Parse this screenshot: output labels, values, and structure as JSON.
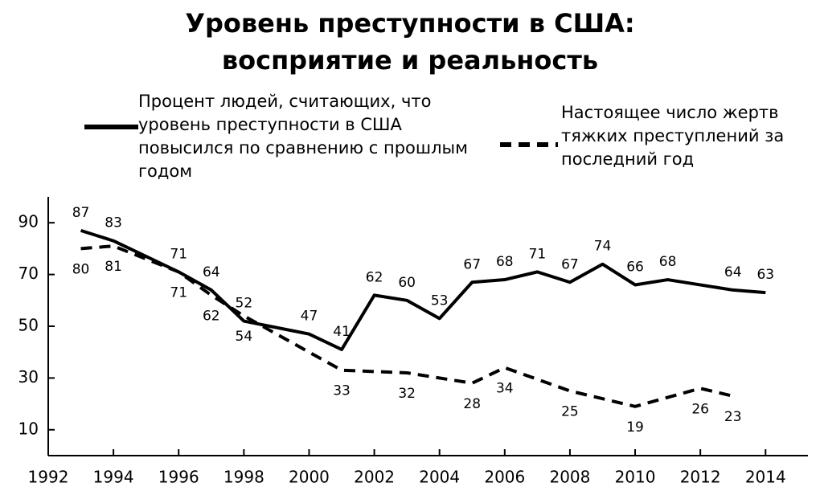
{
  "chart_data": {
    "type": "line",
    "title": "Уровень преступности в США: восприятие и реальность",
    "xlim": [
      1992,
      2015.3
    ],
    "xticks": [
      1992,
      1994,
      1996,
      1998,
      2000,
      2002,
      2004,
      2006,
      2008,
      2010,
      2012,
      2014
    ],
    "ylim": [
      0,
      100
    ],
    "yticks": [
      10,
      30,
      50,
      70,
      90
    ],
    "grid": false,
    "series": [
      {
        "name": "Процент людей, считающих, что уровень преступности в США повысился по сравнению с прошлым годом",
        "color": "#000000",
        "dash": false,
        "x": [
          1993,
          1994,
          1996,
          1997,
          1998,
          2000,
          2001,
          2002,
          2003,
          2004,
          2005,
          2006,
          2007,
          2008,
          2009,
          2010,
          2011,
          2013,
          2014
        ],
        "values": [
          87,
          83,
          71,
          64,
          52,
          47,
          41,
          62,
          60,
          53,
          67,
          68,
          71,
          67,
          74,
          66,
          68,
          64,
          63
        ]
      },
      {
        "name": "Настоящее число жертв тяжких преступлений за последний год",
        "color": "#000000",
        "dash": true,
        "x": [
          1993,
          1994,
          1996,
          1997,
          1998,
          2001,
          2003,
          2005,
          2006,
          2008,
          2010,
          2012,
          2013
        ],
        "values": [
          80,
          81,
          71,
          62,
          54,
          33,
          32,
          28,
          34,
          25,
          19,
          26,
          23
        ]
      }
    ]
  }
}
